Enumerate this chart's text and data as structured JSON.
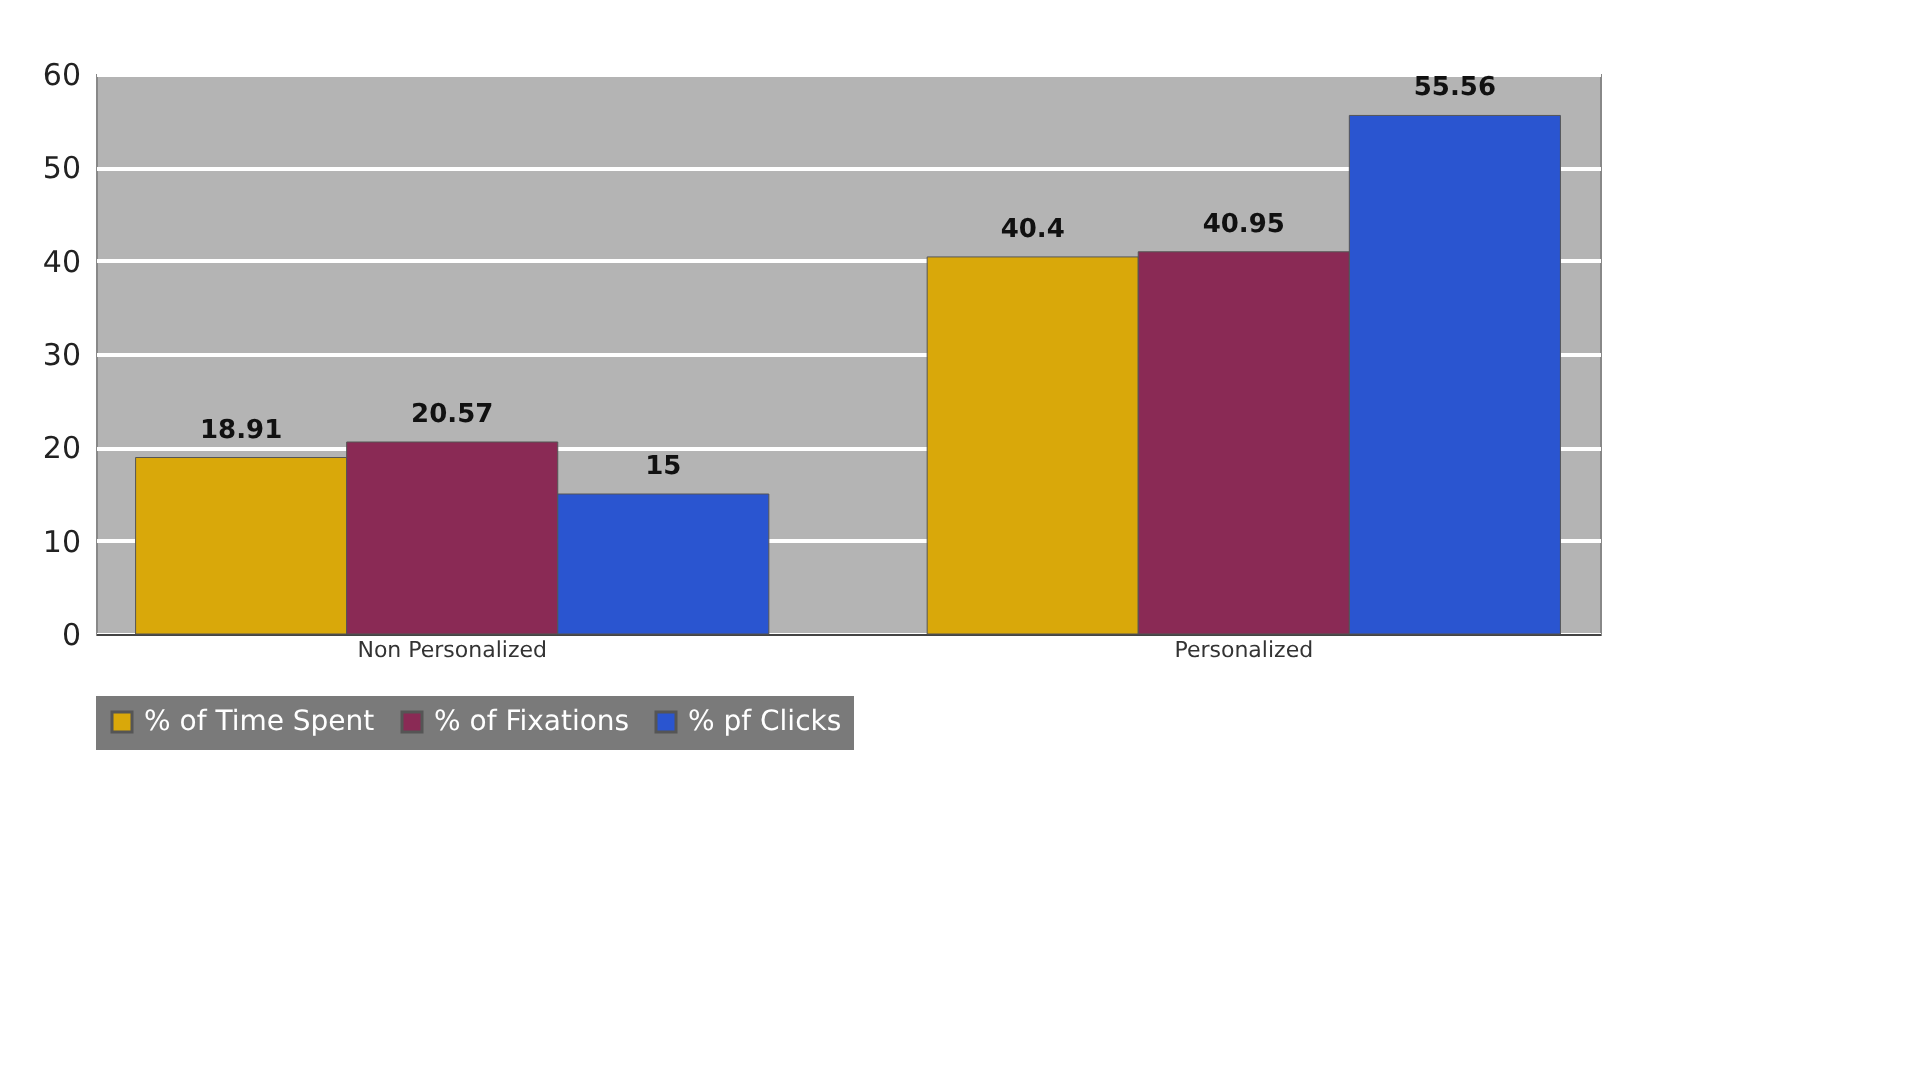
{
  "chart_data": {
    "type": "bar",
    "categories": [
      "Non Personalized",
      "Personalized"
    ],
    "series": [
      {
        "name": "% of Time Spent",
        "color": "#d9a80a",
        "values": [
          18.91,
          40.4
        ]
      },
      {
        "name": "% of Fixations",
        "color": "#8a2a55",
        "values": [
          20.57,
          40.95
        ]
      },
      {
        "name": "% pf Clicks",
        "color": "#2a55d0",
        "values": [
          15,
          55.56
        ]
      }
    ],
    "ylim": [
      0,
      60
    ],
    "yticks": [
      0,
      10,
      20,
      30,
      40,
      50,
      60
    ],
    "grid": "y",
    "legend": "bottom",
    "data_labels": true
  }
}
